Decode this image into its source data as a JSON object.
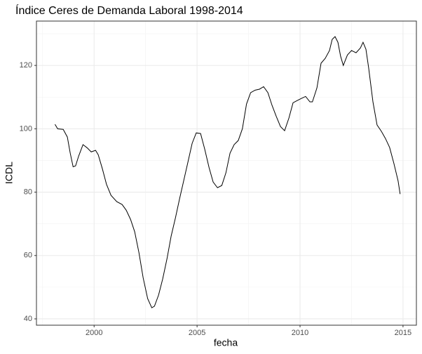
{
  "chart_data": {
    "type": "line",
    "title": "Índice Ceres de Demanda Laboral 1998-2014",
    "xlabel": "fecha",
    "ylabel": "ICDL",
    "series": [
      {
        "name": "ICDL",
        "color": "#000000",
        "x": [
          1998.1,
          1998.23,
          1998.5,
          1998.7,
          1998.84,
          1998.98,
          1999.1,
          1999.25,
          1999.46,
          1999.66,
          1999.86,
          2000.07,
          2000.2,
          2000.4,
          2000.6,
          2000.82,
          2001.1,
          2001.36,
          2001.56,
          2001.77,
          2001.97,
          2002.18,
          2002.38,
          2002.6,
          2002.8,
          2002.93,
          2003.13,
          2003.33,
          2003.54,
          2003.74,
          2003.95,
          2004.15,
          2004.35,
          2004.56,
          2004.76,
          2004.96,
          2005.17,
          2005.37,
          2005.58,
          2005.78,
          2005.99,
          2006.2,
          2006.4,
          2006.6,
          2006.8,
          2007,
          2007.2,
          2007.4,
          2007.6,
          2007.82,
          2008.03,
          2008.23,
          2008.44,
          2008.64,
          2008.84,
          2009.05,
          2009.25,
          2009.46,
          2009.66,
          2009.86,
          2010.07,
          2010.27,
          2010.48,
          2010.6,
          2010.82,
          2011.02,
          2011.22,
          2011.43,
          2011.56,
          2011.7,
          2011.84,
          2011.97,
          2012.1,
          2012.3,
          2012.5,
          2012.72,
          2012.93,
          2013.06,
          2013.2,
          2013.33,
          2013.54,
          2013.74,
          2013.95,
          2014.15,
          2014.35,
          2014.56,
          2014.76,
          2014.86
        ],
        "values": [
          101.4,
          100,
          99.8,
          97.4,
          92.3,
          88,
          88.3,
          91.4,
          95,
          94,
          92.7,
          93.2,
          91.8,
          87.4,
          82.5,
          79,
          77,
          76.1,
          74.3,
          71.4,
          67.5,
          60.8,
          53,
          46.4,
          43.5,
          44,
          47.5,
          52.6,
          59,
          66.1,
          71.9,
          77.9,
          83.6,
          89.6,
          95.4,
          98.7,
          98.5,
          93.6,
          87.8,
          83.2,
          81.4,
          82.1,
          86.1,
          92.3,
          95,
          96.3,
          100,
          107.8,
          111.4,
          112.2,
          112.5,
          113.3,
          111.4,
          107.4,
          104,
          100.7,
          99.4,
          103.4,
          108.2,
          108.9,
          109.6,
          110.2,
          108.5,
          108.5,
          112.9,
          120.7,
          122.2,
          124.7,
          128.2,
          129.1,
          127.3,
          122.9,
          120,
          123.3,
          124.7,
          124,
          125.5,
          127.3,
          125.1,
          119.3,
          108.5,
          101.2,
          99.2,
          96.9,
          94.1,
          89,
          83.6,
          79.4
        ]
      }
    ],
    "xlim": [
      1997.2,
      2015.65
    ],
    "xticks": [
      2000,
      2005,
      2010,
      2015
    ],
    "ylim": [
      38,
      134
    ],
    "yticks": [
      40,
      60,
      80,
      100,
      120
    ],
    "grid": true
  }
}
